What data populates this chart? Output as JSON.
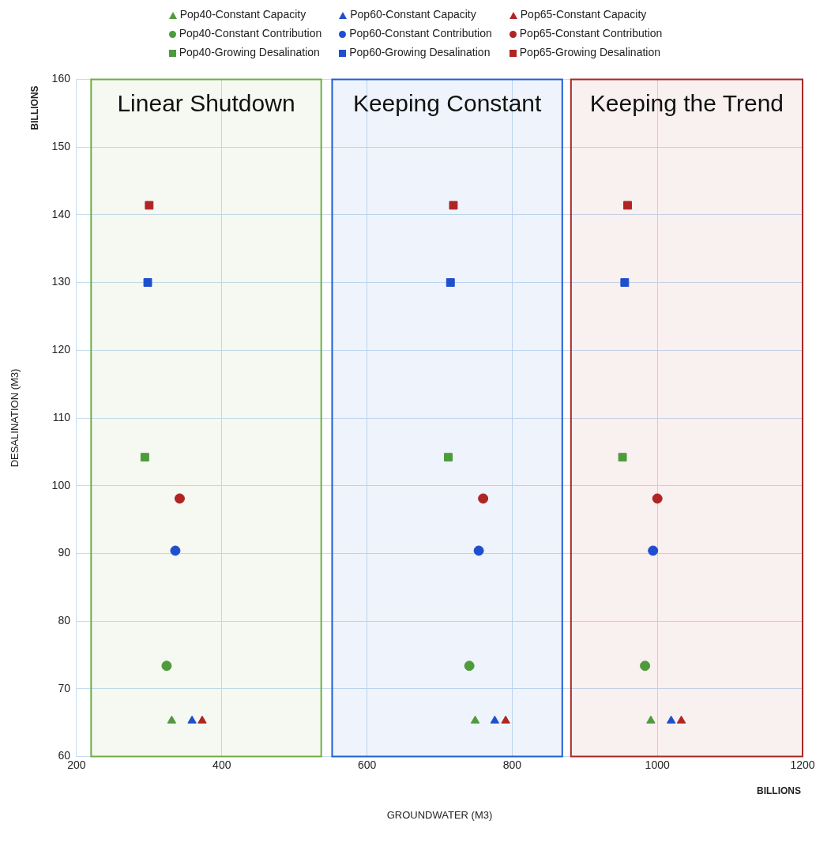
{
  "chart_data": {
    "type": "scatter",
    "xlabel": "GROUNDWATER (M3)",
    "ylabel": "DESALINATION (M3)",
    "annotations": [
      "BILLIONS",
      "BILLIONS"
    ],
    "xlim": [
      200,
      1200
    ],
    "xticks": [
      200,
      400,
      600,
      800,
      1000,
      1200
    ],
    "ylim": [
      60,
      160
    ],
    "yticks": [
      60,
      70,
      80,
      90,
      100,
      110,
      120,
      130,
      140,
      150,
      160
    ],
    "grid": true,
    "legend": "top",
    "bands": [
      {
        "axis": "x",
        "from": 220,
        "to": 537,
        "label": "Linear Shutdown",
        "color": "#70ad47"
      },
      {
        "axis": "x",
        "from": 552,
        "to": 869,
        "label": "Keeping Constant",
        "color": "#1f5fd0"
      },
      {
        "axis": "x",
        "from": 881,
        "to": 1200,
        "label": "Keeping the Trend",
        "color": "#a82828"
      }
    ],
    "series": [
      {
        "name": "Pop40-Constant Capacity",
        "color": "#4e9a3c",
        "marker": "triangle",
        "x": [
          331,
          749,
          991
        ],
        "values": [
          65.3,
          65.3,
          65.3
        ]
      },
      {
        "name": "Pop40-Constant Contribution",
        "color": "#4e9a3c",
        "marker": "circle",
        "x": [
          324,
          741,
          983
        ],
        "values": [
          73.4,
          73.4,
          73.4
        ]
      },
      {
        "name": "Pop40-Growing Desalination",
        "color": "#4e9a3c",
        "marker": "square",
        "x": [
          294,
          712,
          952
        ],
        "values": [
          104.2,
          104.2,
          104.2
        ]
      },
      {
        "name": "Pop60-Constant Capacity",
        "color": "#1f4fcf",
        "marker": "triangle",
        "x": [
          359,
          776,
          1019
        ],
        "values": [
          65.3,
          65.3,
          65.3
        ]
      },
      {
        "name": "Pop60-Constant Contribution",
        "color": "#1f4fcf",
        "marker": "circle",
        "x": [
          336,
          754,
          994
        ],
        "values": [
          90.4,
          90.4,
          90.4
        ]
      },
      {
        "name": "Pop60-Growing Desalination",
        "color": "#1f4fcf",
        "marker": "square",
        "x": [
          298,
          715,
          955
        ],
        "values": [
          130,
          130,
          130
        ]
      },
      {
        "name": "Pop65-Constant Capacity",
        "color": "#b02424",
        "marker": "triangle",
        "x": [
          373,
          791,
          1033
        ],
        "values": [
          65.3,
          65.3,
          65.3
        ]
      },
      {
        "name": "Pop65-Constant Contribution",
        "color": "#b02424",
        "marker": "circle",
        "x": [
          342,
          760,
          1000
        ],
        "values": [
          98.1,
          98.1,
          98.1
        ]
      },
      {
        "name": "Pop65-Growing Desalination",
        "color": "#b02424",
        "marker": "square",
        "x": [
          300,
          719,
          959
        ],
        "values": [
          141.4,
          141.4,
          141.4
        ]
      }
    ]
  }
}
